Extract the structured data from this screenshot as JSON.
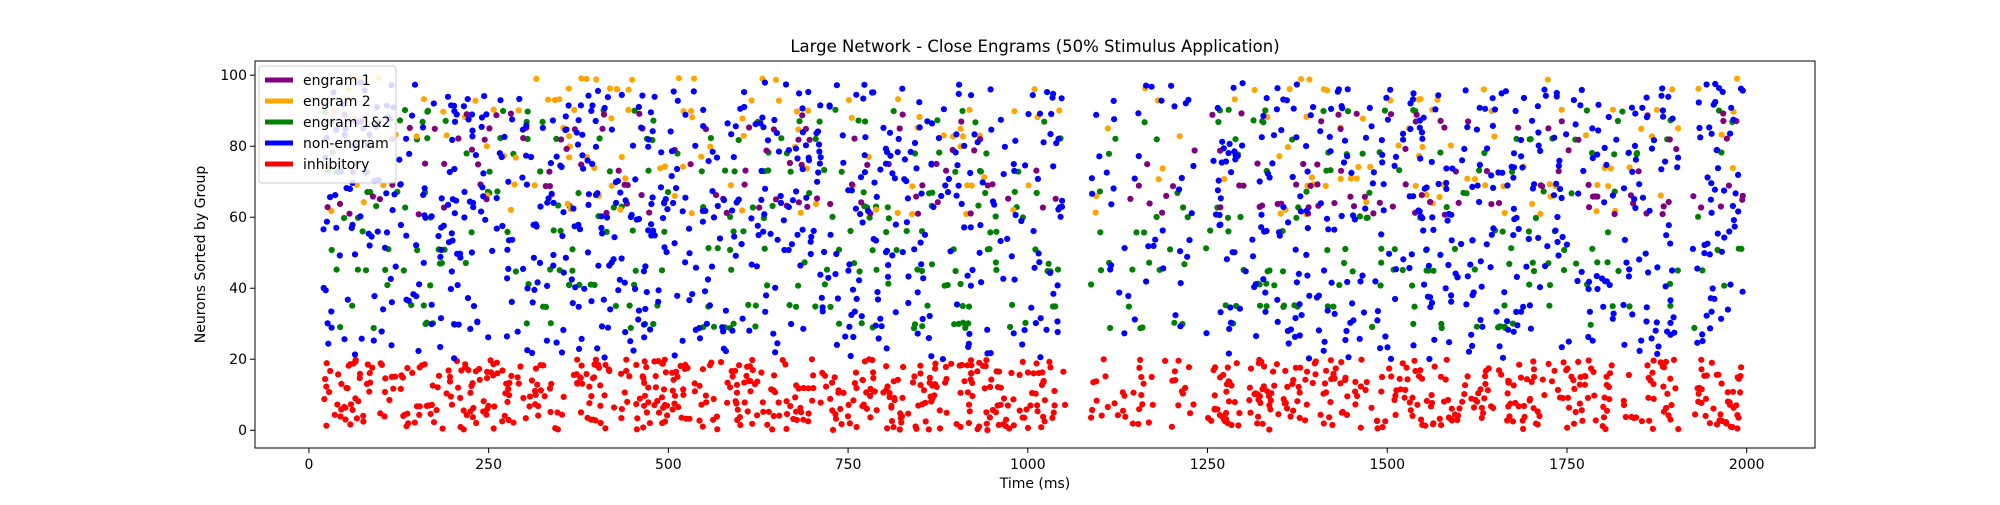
{
  "chart_data": {
    "type": "scatter",
    "title": "Large Network - Close Engrams (50% Stimulus Application)",
    "xlabel": "Time (ms)",
    "ylabel": "Neurons Sorted by Group",
    "xlim": [
      -75,
      2095
    ],
    "ylim": [
      -5,
      104
    ],
    "x_ticks": [
      0,
      250,
      500,
      750,
      1000,
      1250,
      1500,
      1750,
      2000
    ],
    "y_ticks": [
      0,
      20,
      40,
      60,
      80,
      100
    ],
    "legend_position": "top-left",
    "grid": false,
    "series": [
      {
        "name": "engram 1",
        "color": "#800080",
        "y_range": [
          61,
          89
        ],
        "rows": [
          61,
          63,
          64,
          65,
          66,
          69,
          73,
          75,
          79,
          82,
          85,
          87,
          89
        ],
        "count": 190
      },
      {
        "name": "engram 2",
        "color": "#ffa500",
        "y_range": [
          61,
          99
        ],
        "rows": [
          61,
          62,
          64,
          66,
          69,
          71,
          74,
          77,
          80,
          83,
          85,
          88,
          90,
          93,
          96,
          99
        ],
        "count": 200
      },
      {
        "name": "engram 1&2",
        "color": "#008000",
        "y_range": [
          29,
          91
        ],
        "rows": [
          29,
          30,
          35,
          41,
          45,
          47,
          51,
          56,
          60,
          63,
          67,
          73,
          78,
          82,
          87,
          90
        ],
        "count": 420
      },
      {
        "name": "non-engram",
        "color": "#0000ff",
        "y_range": [
          20,
          98
        ],
        "count": 1150
      },
      {
        "name": "inhibitory",
        "color": "#ff0000",
        "y_range": [
          0,
          20
        ],
        "count": 900
      }
    ],
    "x_range": [
      20,
      1995
    ],
    "activity_gaps_ms": [
      [
        1052,
        1088
      ],
      [
        1232,
        1248
      ],
      [
        1905,
        1925
      ]
    ],
    "sparse_window_ms": [
      1060,
      1230
    ]
  }
}
